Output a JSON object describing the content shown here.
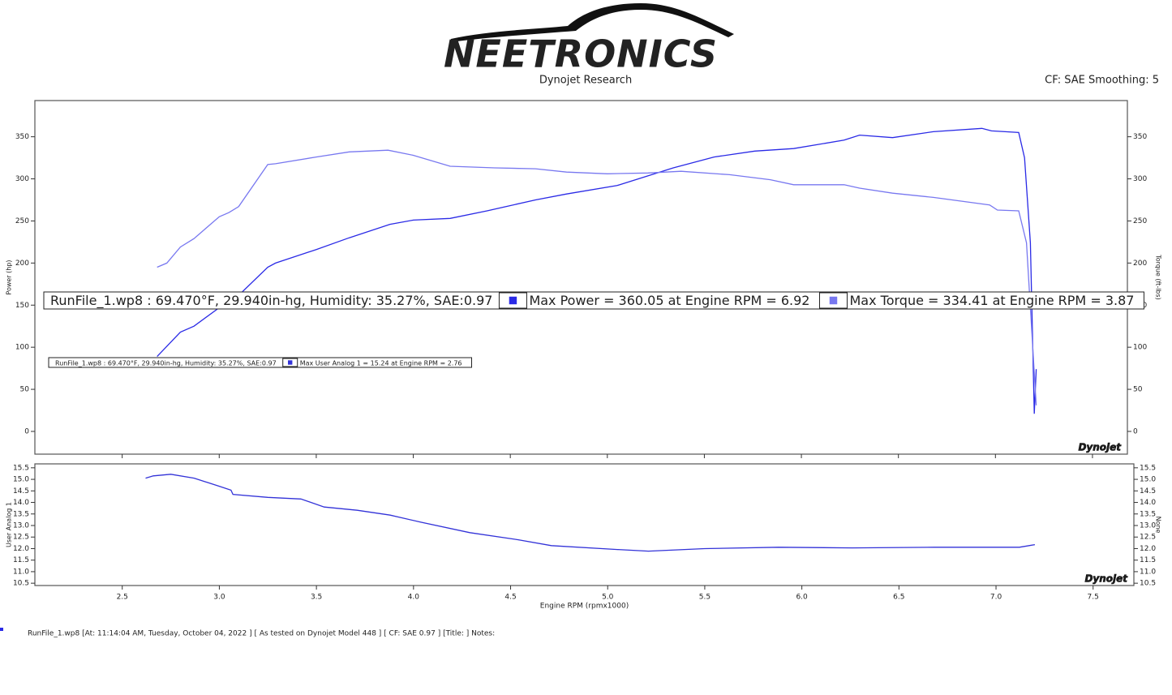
{
  "header": {
    "logo": "NEETRONICS",
    "subtitle": "Dynojet Research",
    "settings": "CF: SAE Smoothing: 5"
  },
  "chart_data": [
    {
      "type": "line",
      "ylabel": "Power (hp)",
      "y2label": "Torque (ft-lbs)",
      "legend_title": "RunFile_1.wp8 : 69.470°F, 29.940in-hg, Humidity: 35.27%, SAE:0.97",
      "watermark": "Dynojet",
      "xlim": [
        2.05,
        7.68
      ],
      "ylim": [
        -27,
        393
      ],
      "yticks": [
        0,
        50,
        100,
        150,
        200,
        250,
        300,
        350
      ],
      "y2lim": [
        -27,
        393
      ],
      "y2ticks": [
        0,
        50,
        100,
        150,
        200,
        250,
        300,
        350
      ],
      "series": [
        {
          "name": "Max Power = 360.05 at Engine RPM = 6.92",
          "color": "#2a2ae6",
          "x": [
            2.68,
            2.8,
            2.87,
            3.0,
            3.12,
            3.25,
            3.29,
            3.5,
            3.67,
            3.88,
            4.0,
            4.19,
            4.38,
            4.63,
            4.79,
            5.05,
            5.34,
            5.55,
            5.76,
            5.96,
            6.22,
            6.3,
            6.47,
            6.68,
            6.93,
            6.98,
            7.12,
            7.15,
            7.18,
            7.2,
            7.21
          ],
          "values": [
            89,
            118,
            125,
            147,
            166,
            195,
            200,
            216,
            230,
            246,
            251,
            253,
            262,
            275,
            282,
            292,
            313,
            326,
            333,
            336,
            346,
            352,
            349,
            356,
            360,
            357,
            355,
            325,
            224,
            21,
            74
          ]
        },
        {
          "name": "Max Torque = 334.41 at Engine RPM = 3.87",
          "color": "#7878f0",
          "axis": "y2",
          "x": [
            2.68,
            2.73,
            2.8,
            2.87,
            3.0,
            3.05,
            3.1,
            3.25,
            3.29,
            3.5,
            3.67,
            3.87,
            4.0,
            4.19,
            4.42,
            4.63,
            4.79,
            5.0,
            5.21,
            5.38,
            5.63,
            5.84,
            5.96,
            6.22,
            6.3,
            6.47,
            6.68,
            6.97,
            7.01,
            7.12,
            7.16,
            7.19,
            7.21
          ],
          "values": [
            195,
            200,
            219,
            229,
            255,
            260,
            267,
            317,
            318,
            326,
            332,
            334,
            328,
            315,
            313,
            312,
            308,
            306,
            307,
            309,
            305,
            299,
            293,
            293,
            289,
            283,
            278,
            269,
            263,
            262,
            224,
            108,
            31
          ]
        }
      ]
    },
    {
      "type": "line",
      "ylabel": "User Analog 1",
      "y2label": "None",
      "xlabel": "Engine RPM (rpmx1000)",
      "legend_title": "RunFile_1.wp8 : 69.470°F, 29.940in-hg, Humidity: 35.27%, SAE:0.97",
      "watermark": "Dynojet",
      "xlim": [
        2.05,
        7.71
      ],
      "xticks": [
        2.5,
        {
          "value": 3,
          "label": "3.0"
        },
        3.5,
        {
          "value": 4,
          "label": "4.0"
        },
        4.5,
        {
          "value": 5,
          "label": "5.0"
        },
        5.5,
        {
          "value": 6,
          "label": "6.0"
        },
        6.5,
        {
          "value": 7,
          "label": "7.0"
        },
        7.5
      ],
      "ylim": [
        10.4,
        15.67
      ],
      "yticks": [
        10.5,
        {
          "value": 11,
          "label": "11.0"
        },
        11.5,
        {
          "value": 12,
          "label": "12.0"
        },
        12.5,
        {
          "value": 13,
          "label": "13.0"
        },
        13.5,
        {
          "value": 14,
          "label": "14.0"
        },
        14.5,
        {
          "value": 15,
          "label": "15.0"
        },
        15.5
      ],
      "y2lim": [
        10.4,
        15.67
      ],
      "y2ticks": [
        10.5,
        {
          "value": 11,
          "label": "11.0"
        },
        11.5,
        {
          "value": 12,
          "label": "12.0"
        },
        12.5,
        {
          "value": 13,
          "label": "13.0"
        },
        13.5,
        {
          "value": 14,
          "label": "14.0"
        },
        14.5,
        {
          "value": 15,
          "label": "15.0"
        },
        15.5
      ],
      "series": [
        {
          "name": "Max User Analog 1 = 15.24 at Engine RPM = 2.76",
          "color": "#3232d8",
          "x": [
            2.62,
            2.66,
            2.75,
            2.87,
            3.0,
            3.06,
            3.07,
            3.25,
            3.42,
            3.54,
            3.71,
            3.88,
            4.04,
            4.29,
            4.54,
            4.71,
            5.05,
            5.21,
            5.5,
            5.88,
            6.26,
            6.68,
            7.12,
            7.2
          ],
          "values": [
            15.05,
            15.15,
            15.22,
            15.05,
            14.7,
            14.53,
            14.35,
            14.22,
            14.15,
            13.8,
            13.66,
            13.45,
            13.14,
            12.69,
            12.38,
            12.13,
            11.96,
            11.89,
            12.0,
            12.06,
            12.03,
            12.06,
            12.06,
            12.17
          ]
        }
      ]
    }
  ],
  "footer": "RunFile_1.wp8 [At: 11:14:04 AM, Tuesday, October 04, 2022 ] [ As tested on Dynojet Model 448 ] [ CF: SAE 0.97 ] [Title: ] Notes:"
}
